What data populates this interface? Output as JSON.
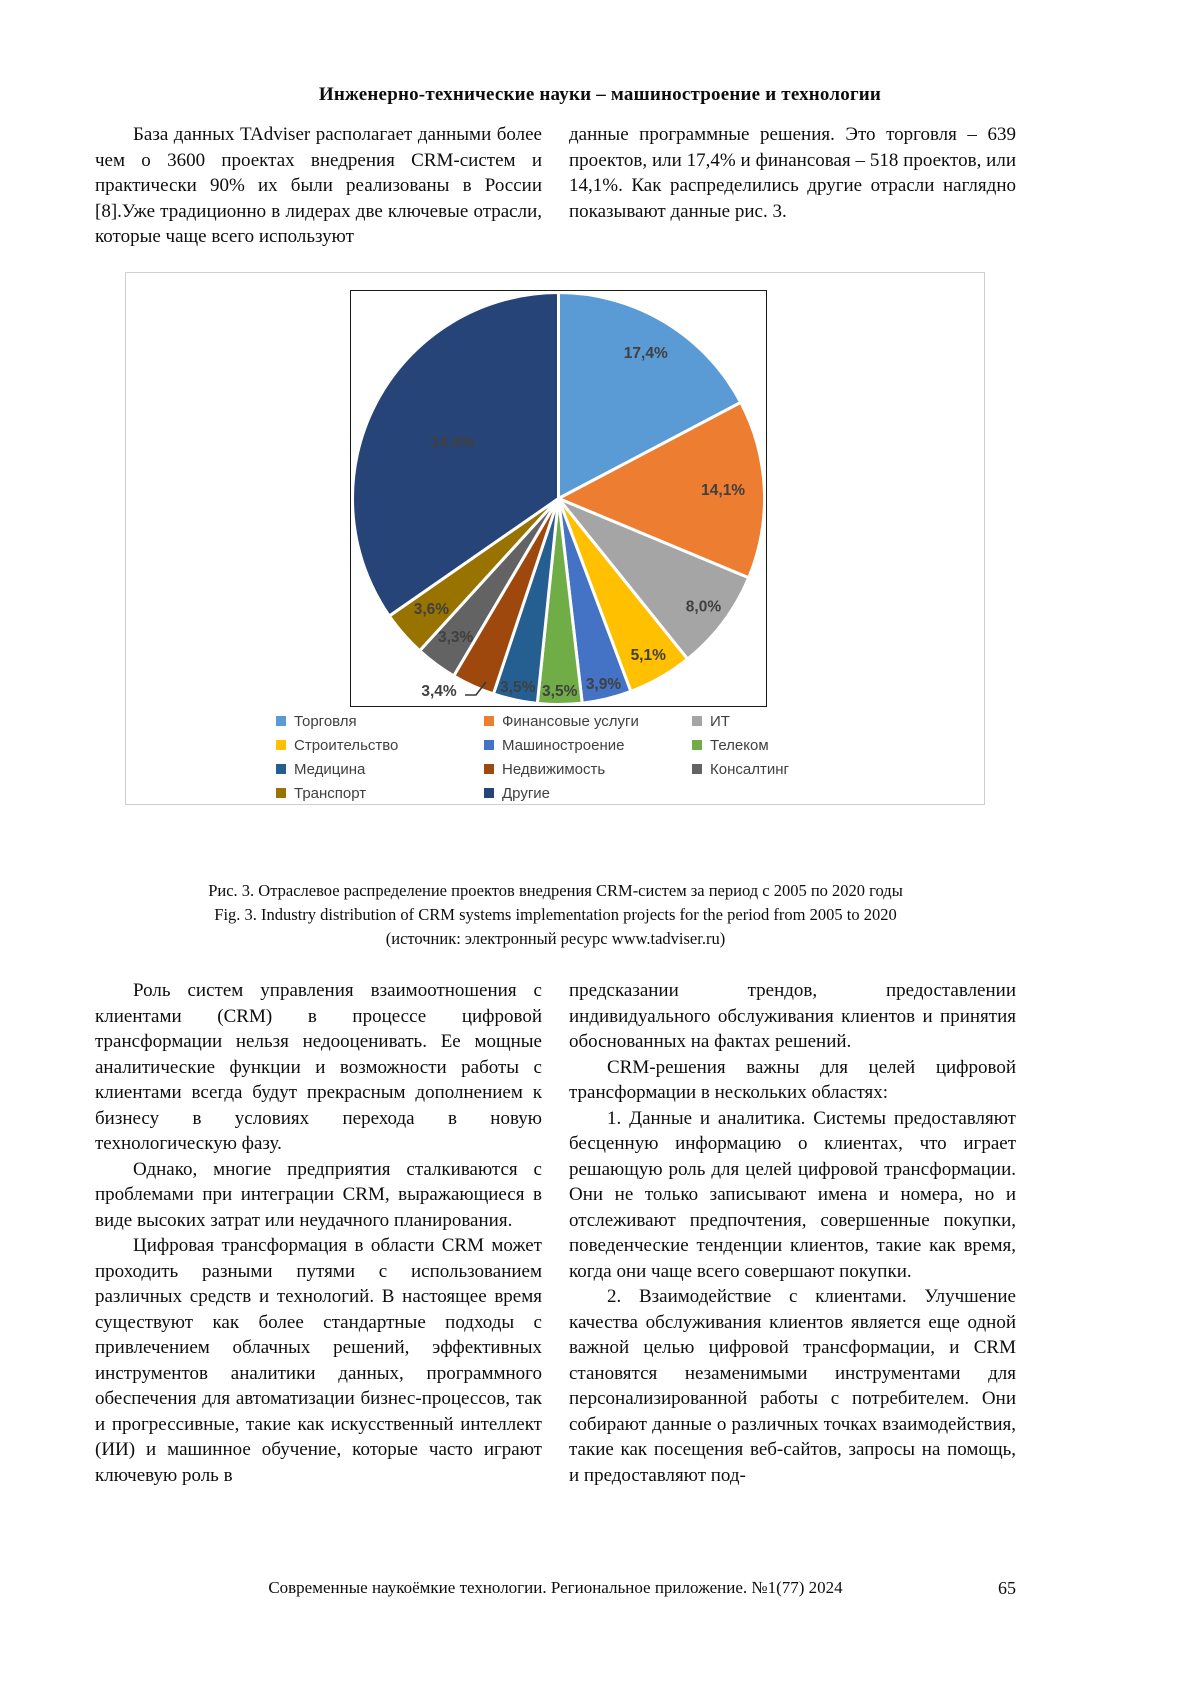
{
  "header": {
    "title": "Инженерно-технические науки – машиностроение и технологии"
  },
  "intro": {
    "left": "База данных TAdviser располагает данными более чем о 3600 проектах внедрения CRM-систем и практически 90% их были реализованы в России [8].Уже традиционно в лидерах две ключевые отрасли, которые чаще всего используют",
    "right": "данные программные решения. Это торговля – 639 проектов, или 17,4% и финансовая – 518 проектов, или 14,1%. Как распределились другие отрасли наглядно показывают данные рис. 3."
  },
  "chart_data": {
    "type": "pie",
    "title": "",
    "legend_position": "bottom",
    "start_angle_deg": 0,
    "direction": "clockwise",
    "percent_label_color": "#404040",
    "slices": [
      {
        "label": "Торговля",
        "value": 17.4,
        "display": "17,4%",
        "color": "#5B9BD5",
        "lr": 0.82
      },
      {
        "label": "Финансовые услуги",
        "value": 14.1,
        "display": "14,1%",
        "color": "#ED7D31",
        "lr": 0.8
      },
      {
        "label": "ИТ",
        "value": 8.0,
        "display": "8,0%",
        "color": "#A5A5A5",
        "lr": 0.88
      },
      {
        "label": "Строительство",
        "value": 5.1,
        "display": "5,1%",
        "color": "#FFC000",
        "lr": 0.88
      },
      {
        "label": "Машиностроение",
        "value": 3.9,
        "display": "3,9%",
        "color": "#4472C4",
        "lr": 0.93
      },
      {
        "label": "Телеком",
        "value": 3.5,
        "display": "3,5%",
        "color": "#70AD47",
        "lr": 0.94
      },
      {
        "label": "Медицина",
        "value": 3.5,
        "display": "3,5%",
        "color": "#255E91",
        "lr": 0.94
      },
      {
        "label": "Недвижимость",
        "value": 3.4,
        "display": "3,4%",
        "color": "#9E480E",
        "outside": true
      },
      {
        "label": "Консалтинг",
        "value": 3.3,
        "display": "3,3%",
        "color": "#636363",
        "lr": 0.84
      },
      {
        "label": "Транспорт",
        "value": 3.6,
        "display": "3,6%",
        "color": "#997300",
        "lr": 0.82
      },
      {
        "label": "Другие",
        "value": 34.9,
        "display": "34,9%",
        "color": "#264478",
        "lr": 0.58
      }
    ],
    "outside_label": {
      "xy": [
        88,
        401
      ],
      "leader": [
        [
          114,
          404
        ],
        [
          125,
          404
        ],
        [
          135,
          391
        ]
      ]
    }
  },
  "caption": {
    "ru": "Рис. 3. Отраслевое распределение проектов внедрения CRM-систем за период с 2005 по 2020 годы",
    "en": "Fig. 3. Industry distribution of CRM systems implementation projects for the period from 2005 to 2020",
    "source": "(источник: электронный ресурс www.tadviser.ru)"
  },
  "body": {
    "left": [
      "Роль систем управления взаимоотношения с клиентами (CRM) в процессе цифровой трансформации нельзя недооценивать. Ее мощные аналитические функции и возможности работы с клиентами всегда будут прекрасным дополнением к бизнесу в условиях перехода в новую технологическую фазу.",
      "Однако, многие предприятия сталкиваются с проблемами при интеграции CRM, выражающиеся в виде высоких затрат или неудачного планирования.",
      "Цифровая трансформация в области CRM может проходить разными путями с использованием различных средств и технологий. В настоящее время существуют как более стандартные подходы с привлечением облачных решений, эффективных инструментов аналитики данных, программного обеспечения для автоматизации бизнес-процессов, так и прогрессивные, такие как искусственный интеллект (ИИ) и машинное обучение, которые часто играют ключевую роль в"
    ],
    "right": [
      "предсказании трендов, предоставлении индивидуального обслуживания клиентов и принятия обоснованных на фактах решений.",
      "CRM-решения важны для целей цифровой трансформации в нескольких областях:",
      "1. Данные и аналитика. Системы предоставляют бесценную информацию о клиентах, что играет решающую роль для целей цифровой трансформации. Они не только записывают имена и номера, но и отслеживают предпочтения, совершенные покупки, поведенческие тенденции клиентов, такие как время, когда они чаще всего совершают покупки.",
      "2. Взаимодействие с клиентами. Улучшение качества обслуживания клиентов является еще одной важной целью цифровой трансформации, и CRM становятся незаменимыми инструментами для персонализированной работы с потребителем. Они собирают данные о различных точках взаимодействия, такие как посещения веб-сайтов, запросы на помощь, и предоставляют под-"
    ]
  },
  "footer": {
    "text": "Современные наукоёмкие технологии. Региональное приложение. №1(77) 2024",
    "page": "65"
  }
}
